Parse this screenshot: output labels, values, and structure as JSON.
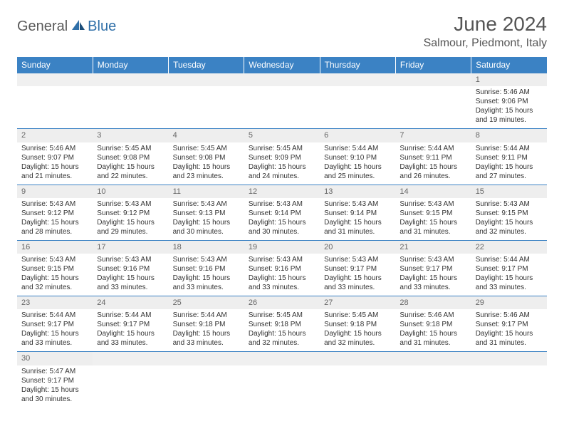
{
  "brand": {
    "part1": "General",
    "part2": "Blue"
  },
  "title": "June 2024",
  "location": "Salmour, Piedmont, Italy",
  "colors": {
    "header_bg": "#3b82c4",
    "header_text": "#ffffff",
    "daynum_bg": "#eeeeee",
    "border": "#3b82c4",
    "brand_gray": "#5a5a5a",
    "brand_blue": "#2f6fa8"
  },
  "typography": {
    "title_fontsize": 28,
    "location_fontsize": 16,
    "header_fontsize": 12,
    "daynum_fontsize": 11,
    "cell_fontsize": 10
  },
  "weekdays": [
    "Sunday",
    "Monday",
    "Tuesday",
    "Wednesday",
    "Thursday",
    "Friday",
    "Saturday"
  ],
  "weeks": [
    [
      null,
      null,
      null,
      null,
      null,
      null,
      {
        "n": "1",
        "sr": "Sunrise: 5:46 AM",
        "ss": "Sunset: 9:06 PM",
        "d1": "Daylight: 15 hours",
        "d2": "and 19 minutes."
      }
    ],
    [
      {
        "n": "2",
        "sr": "Sunrise: 5:46 AM",
        "ss": "Sunset: 9:07 PM",
        "d1": "Daylight: 15 hours",
        "d2": "and 21 minutes."
      },
      {
        "n": "3",
        "sr": "Sunrise: 5:45 AM",
        "ss": "Sunset: 9:08 PM",
        "d1": "Daylight: 15 hours",
        "d2": "and 22 minutes."
      },
      {
        "n": "4",
        "sr": "Sunrise: 5:45 AM",
        "ss": "Sunset: 9:08 PM",
        "d1": "Daylight: 15 hours",
        "d2": "and 23 minutes."
      },
      {
        "n": "5",
        "sr": "Sunrise: 5:45 AM",
        "ss": "Sunset: 9:09 PM",
        "d1": "Daylight: 15 hours",
        "d2": "and 24 minutes."
      },
      {
        "n": "6",
        "sr": "Sunrise: 5:44 AM",
        "ss": "Sunset: 9:10 PM",
        "d1": "Daylight: 15 hours",
        "d2": "and 25 minutes."
      },
      {
        "n": "7",
        "sr": "Sunrise: 5:44 AM",
        "ss": "Sunset: 9:11 PM",
        "d1": "Daylight: 15 hours",
        "d2": "and 26 minutes."
      },
      {
        "n": "8",
        "sr": "Sunrise: 5:44 AM",
        "ss": "Sunset: 9:11 PM",
        "d1": "Daylight: 15 hours",
        "d2": "and 27 minutes."
      }
    ],
    [
      {
        "n": "9",
        "sr": "Sunrise: 5:43 AM",
        "ss": "Sunset: 9:12 PM",
        "d1": "Daylight: 15 hours",
        "d2": "and 28 minutes."
      },
      {
        "n": "10",
        "sr": "Sunrise: 5:43 AM",
        "ss": "Sunset: 9:12 PM",
        "d1": "Daylight: 15 hours",
        "d2": "and 29 minutes."
      },
      {
        "n": "11",
        "sr": "Sunrise: 5:43 AM",
        "ss": "Sunset: 9:13 PM",
        "d1": "Daylight: 15 hours",
        "d2": "and 30 minutes."
      },
      {
        "n": "12",
        "sr": "Sunrise: 5:43 AM",
        "ss": "Sunset: 9:14 PM",
        "d1": "Daylight: 15 hours",
        "d2": "and 30 minutes."
      },
      {
        "n": "13",
        "sr": "Sunrise: 5:43 AM",
        "ss": "Sunset: 9:14 PM",
        "d1": "Daylight: 15 hours",
        "d2": "and 31 minutes."
      },
      {
        "n": "14",
        "sr": "Sunrise: 5:43 AM",
        "ss": "Sunset: 9:15 PM",
        "d1": "Daylight: 15 hours",
        "d2": "and 31 minutes."
      },
      {
        "n": "15",
        "sr": "Sunrise: 5:43 AM",
        "ss": "Sunset: 9:15 PM",
        "d1": "Daylight: 15 hours",
        "d2": "and 32 minutes."
      }
    ],
    [
      {
        "n": "16",
        "sr": "Sunrise: 5:43 AM",
        "ss": "Sunset: 9:15 PM",
        "d1": "Daylight: 15 hours",
        "d2": "and 32 minutes."
      },
      {
        "n": "17",
        "sr": "Sunrise: 5:43 AM",
        "ss": "Sunset: 9:16 PM",
        "d1": "Daylight: 15 hours",
        "d2": "and 33 minutes."
      },
      {
        "n": "18",
        "sr": "Sunrise: 5:43 AM",
        "ss": "Sunset: 9:16 PM",
        "d1": "Daylight: 15 hours",
        "d2": "and 33 minutes."
      },
      {
        "n": "19",
        "sr": "Sunrise: 5:43 AM",
        "ss": "Sunset: 9:16 PM",
        "d1": "Daylight: 15 hours",
        "d2": "and 33 minutes."
      },
      {
        "n": "20",
        "sr": "Sunrise: 5:43 AM",
        "ss": "Sunset: 9:17 PM",
        "d1": "Daylight: 15 hours",
        "d2": "and 33 minutes."
      },
      {
        "n": "21",
        "sr": "Sunrise: 5:43 AM",
        "ss": "Sunset: 9:17 PM",
        "d1": "Daylight: 15 hours",
        "d2": "and 33 minutes."
      },
      {
        "n": "22",
        "sr": "Sunrise: 5:44 AM",
        "ss": "Sunset: 9:17 PM",
        "d1": "Daylight: 15 hours",
        "d2": "and 33 minutes."
      }
    ],
    [
      {
        "n": "23",
        "sr": "Sunrise: 5:44 AM",
        "ss": "Sunset: 9:17 PM",
        "d1": "Daylight: 15 hours",
        "d2": "and 33 minutes."
      },
      {
        "n": "24",
        "sr": "Sunrise: 5:44 AM",
        "ss": "Sunset: 9:17 PM",
        "d1": "Daylight: 15 hours",
        "d2": "and 33 minutes."
      },
      {
        "n": "25",
        "sr": "Sunrise: 5:44 AM",
        "ss": "Sunset: 9:18 PM",
        "d1": "Daylight: 15 hours",
        "d2": "and 33 minutes."
      },
      {
        "n": "26",
        "sr": "Sunrise: 5:45 AM",
        "ss": "Sunset: 9:18 PM",
        "d1": "Daylight: 15 hours",
        "d2": "and 32 minutes."
      },
      {
        "n": "27",
        "sr": "Sunrise: 5:45 AM",
        "ss": "Sunset: 9:18 PM",
        "d1": "Daylight: 15 hours",
        "d2": "and 32 minutes."
      },
      {
        "n": "28",
        "sr": "Sunrise: 5:46 AM",
        "ss": "Sunset: 9:18 PM",
        "d1": "Daylight: 15 hours",
        "d2": "and 31 minutes."
      },
      {
        "n": "29",
        "sr": "Sunrise: 5:46 AM",
        "ss": "Sunset: 9:17 PM",
        "d1": "Daylight: 15 hours",
        "d2": "and 31 minutes."
      }
    ],
    [
      {
        "n": "30",
        "sr": "Sunrise: 5:47 AM",
        "ss": "Sunset: 9:17 PM",
        "d1": "Daylight: 15 hours",
        "d2": "and 30 minutes."
      },
      null,
      null,
      null,
      null,
      null,
      null
    ]
  ]
}
